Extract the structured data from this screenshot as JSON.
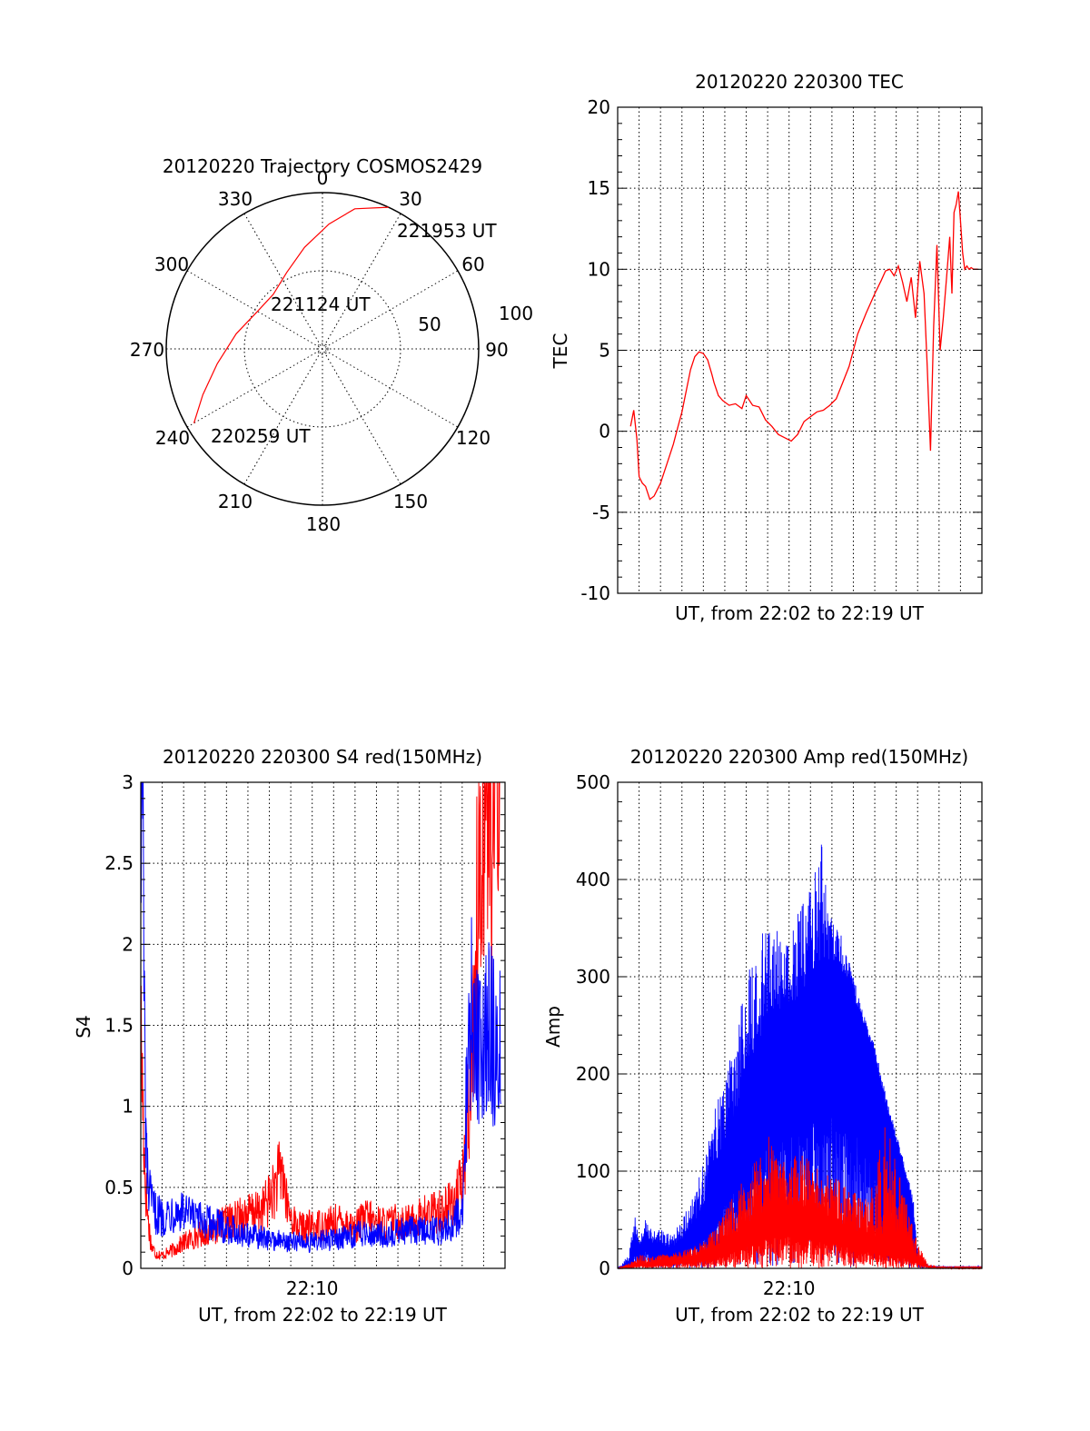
{
  "chart_data": [
    {
      "id": "polar",
      "type": "line",
      "title": "20120220 Trajectory COSMOS2429",
      "projection": "polar",
      "azimuth_labels": [
        "0",
        "30",
        "60",
        "90",
        "120",
        "150",
        "180",
        "210",
        "240",
        "270",
        "300",
        "330"
      ],
      "radius_labels": [
        "50",
        "100"
      ],
      "radius_range": [
        0,
        100
      ],
      "grid": true,
      "annotations": [
        "221953 UT",
        "221124 UT",
        "220259 UT"
      ],
      "series": [
        {
          "color": "#ff0000",
          "points": [
            {
              "az": 240,
              "r": 95
            },
            {
              "az": 249,
              "r": 82
            },
            {
              "az": 262,
              "r": 68
            },
            {
              "az": 280,
              "r": 56
            },
            {
              "az": 300,
              "r": 48
            },
            {
              "az": 318,
              "r": 47
            },
            {
              "az": 335,
              "r": 54
            },
            {
              "az": 350,
              "r": 66
            },
            {
              "az": 3,
              "r": 80
            },
            {
              "az": 13,
              "r": 92
            },
            {
              "az": 25,
              "r": 100
            }
          ]
        }
      ]
    },
    {
      "id": "tec",
      "type": "line",
      "title": "20120220 220300 TEC",
      "xlabel": "UT, from 22:02 to 22:19 UT",
      "ylabel": "TEC",
      "ylim": [
        -10,
        20
      ],
      "yticks": [
        "-10",
        "-5",
        "0",
        "5",
        "10",
        "15",
        "20"
      ],
      "xlim": [
        0,
        17
      ],
      "grid": true,
      "series": [
        {
          "color": "#ff0000",
          "x": [
            0.6,
            0.75,
            0.9,
            1.0,
            1.15,
            1.3,
            1.5,
            1.7,
            2.0,
            2.3,
            2.6,
            2.8,
            3.0,
            3.2,
            3.4,
            3.6,
            3.8,
            4.0,
            4.2,
            4.4,
            4.5,
            4.7,
            4.9,
            5.2,
            5.5,
            5.8,
            6.0,
            6.3,
            6.6,
            6.9,
            7.2,
            7.5,
            7.8,
            8.1,
            8.4,
            8.7,
            9.0,
            9.3,
            9.6,
            9.9,
            10.2,
            10.5,
            10.8,
            11.2,
            11.6,
            12.0,
            12.3,
            12.5,
            12.7,
            12.9,
            13.1,
            13.3,
            13.5,
            13.7,
            13.9,
            14.1,
            14.3,
            14.45,
            14.6,
            14.75,
            14.9,
            15.05,
            15.2,
            15.35,
            15.5,
            15.6,
            15.7,
            15.8,
            15.9,
            16.0,
            16.1,
            16.2,
            16.3,
            16.4,
            16.5,
            16.6,
            16.7,
            16.8
          ],
          "y": [
            0.3,
            1.3,
            -0.5,
            -2.8,
            -3.2,
            -3.4,
            -4.2,
            -4.0,
            -3.2,
            -2.0,
            -0.8,
            0.2,
            1.2,
            2.5,
            3.8,
            4.6,
            4.9,
            4.8,
            4.4,
            3.5,
            3.0,
            2.2,
            1.9,
            1.6,
            1.7,
            1.4,
            2.2,
            1.6,
            1.5,
            0.7,
            0.3,
            -0.2,
            -0.4,
            -0.6,
            -0.2,
            0.6,
            0.9,
            1.2,
            1.3,
            1.6,
            2.0,
            3.0,
            4.0,
            6.0,
            7.3,
            8.5,
            9.3,
            9.9,
            10.0,
            9.6,
            10.2,
            9.2,
            8.0,
            9.5,
            7.0,
            10.5,
            8.5,
            4.0,
            -1.2,
            6.5,
            11.5,
            5.0,
            7.0,
            9.5,
            12.0,
            8.5,
            13.5,
            14.0,
            14.8,
            13.0,
            11.0,
            10.0,
            10.2,
            10.0,
            10.1,
            10.0,
            10.0,
            10.0
          ]
        }
      ]
    },
    {
      "id": "s4",
      "type": "line",
      "title": "20120220 220300 S4 red(150MHz)",
      "xlabel": "UT, from 22:02 to 22:19 UT",
      "ylabel": "S4",
      "ylim": [
        0,
        3
      ],
      "yticks": [
        "0",
        "0.5",
        "1",
        "1.5",
        "2",
        "2.5",
        "3"
      ],
      "xlim": [
        0,
        17
      ],
      "xticks": [
        {
          "value": 8,
          "label": "22:10"
        }
      ],
      "grid": true,
      "series": [
        {
          "color": "#ff0000",
          "x": [
            0.0,
            0.1,
            0.2,
            0.35,
            0.5,
            0.7,
            1.0,
            1.5,
            2.0,
            2.5,
            3.0,
            3.5,
            4.0,
            4.5,
            5.0,
            5.5,
            6.0,
            6.3,
            6.6,
            6.8,
            7.0,
            7.3,
            7.6,
            8.0,
            8.5,
            9.0,
            9.5,
            10.0,
            10.5,
            11.0,
            11.5,
            12.0,
            12.5,
            13.0,
            13.5,
            14.0,
            14.5,
            15.0,
            15.2,
            15.4,
            15.6,
            15.8,
            16.0,
            16.2,
            16.4,
            16.6,
            16.8
          ],
          "y": [
            1.3,
            0.9,
            0.5,
            0.25,
            0.12,
            0.08,
            0.07,
            0.1,
            0.14,
            0.17,
            0.2,
            0.22,
            0.25,
            0.27,
            0.3,
            0.3,
            0.38,
            0.45,
            0.55,
            0.35,
            0.28,
            0.23,
            0.22,
            0.23,
            0.24,
            0.25,
            0.26,
            0.22,
            0.28,
            0.25,
            0.24,
            0.26,
            0.25,
            0.28,
            0.3,
            0.32,
            0.35,
            0.45,
            0.7,
            1.1,
            1.6,
            2.2,
            2.6,
            2.8,
            2.2,
            2.9,
            3.0
          ]
        },
        {
          "color": "#0000ff",
          "x": [
            0.0,
            0.08,
            0.15,
            0.22,
            0.3,
            0.4,
            0.5,
            0.7,
            1.0,
            1.5,
            2.0,
            2.5,
            3.0,
            3.5,
            4.0,
            4.5,
            5.0,
            5.5,
            6.0,
            6.5,
            7.0,
            7.5,
            8.0,
            8.5,
            9.0,
            9.5,
            10.0,
            10.5,
            11.0,
            11.5,
            12.0,
            12.5,
            13.0,
            13.5,
            14.0,
            14.5,
            15.0,
            15.2,
            15.4,
            15.6,
            15.8,
            16.0,
            16.2,
            16.4,
            16.6,
            16.8
          ],
          "y": [
            3.0,
            3.0,
            1.5,
            0.8,
            0.5,
            0.4,
            0.35,
            0.3,
            0.28,
            0.32,
            0.3,
            0.27,
            0.25,
            0.24,
            0.22,
            0.2,
            0.18,
            0.17,
            0.16,
            0.15,
            0.14,
            0.15,
            0.14,
            0.15,
            0.16,
            0.17,
            0.18,
            0.2,
            0.19,
            0.18,
            0.2,
            0.21,
            0.2,
            0.22,
            0.2,
            0.25,
            0.3,
            0.9,
            1.4,
            1.3,
            1.2,
            1.25,
            1.35,
            1.3,
            1.1,
            1.2
          ]
        }
      ]
    },
    {
      "id": "amp",
      "type": "line",
      "title": "20120220 220300 Amp red(150MHz)",
      "xlabel": "UT, from 22:02 to 22:19 UT",
      "ylabel": "Amp",
      "ylim": [
        0,
        500
      ],
      "yticks": [
        "0",
        "100",
        "200",
        "300",
        "400",
        "500"
      ],
      "xlim": [
        0,
        17
      ],
      "xticks": [
        {
          "value": 8,
          "label": "22:10"
        }
      ],
      "grid": true,
      "series": [
        {
          "color": "#0000ff",
          "x": [
            0.0,
            0.5,
            0.8,
            1.0,
            1.3,
            1.6,
            2.0,
            2.5,
            3.0,
            3.5,
            4.0,
            4.5,
            5.0,
            5.5,
            6.0,
            6.5,
            7.0,
            7.5,
            8.0,
            8.5,
            9.0,
            9.5,
            10.0,
            10.5,
            11.0,
            11.5,
            12.0,
            12.5,
            13.0,
            13.5,
            13.8,
            14.0,
            14.5,
            15.0,
            15.5,
            16.0,
            16.5,
            17.0
          ],
          "y": [
            0,
            5,
            30,
            15,
            40,
            20,
            25,
            20,
            30,
            45,
            60,
            90,
            130,
            160,
            200,
            230,
            250,
            260,
            270,
            280,
            300,
            310,
            320,
            300,
            280,
            250,
            220,
            170,
            130,
            90,
            60,
            10,
            3,
            2,
            2,
            2,
            2,
            2
          ],
          "y_peak": [
            0,
            15,
            55,
            30,
            50,
            40,
            40,
            35,
            50,
            75,
            110,
            160,
            200,
            240,
            300,
            340,
            350,
            360,
            330,
            380,
            400,
            440,
            360,
            340,
            300,
            260,
            230,
            180,
            140,
            100,
            70,
            15,
            3,
            2,
            2,
            2,
            2,
            2
          ]
        },
        {
          "color": "#ff0000",
          "x": [
            0.0,
            0.5,
            1.0,
            1.5,
            2.0,
            2.5,
            3.0,
            3.5,
            4.0,
            4.5,
            5.0,
            5.5,
            6.0,
            6.5,
            7.0,
            7.5,
            8.0,
            8.5,
            9.0,
            9.5,
            10.0,
            10.5,
            11.0,
            11.5,
            12.0,
            12.5,
            13.0,
            13.5,
            14.0,
            14.5,
            15.0,
            16.0,
            17.0
          ],
          "y": [
            0,
            2,
            5,
            5,
            8,
            10,
            10,
            12,
            15,
            20,
            25,
            35,
            45,
            55,
            60,
            65,
            65,
            65,
            60,
            55,
            50,
            45,
            40,
            35,
            30,
            28,
            25,
            20,
            10,
            2,
            1,
            1,
            1
          ],
          "y_peak": [
            0,
            5,
            15,
            12,
            15,
            15,
            18,
            22,
            28,
            40,
            60,
            80,
            100,
            120,
            140,
            110,
            115,
            120,
            110,
            100,
            95,
            90,
            80,
            70,
            90,
            160,
            110,
            70,
            25,
            5,
            2,
            1,
            1
          ]
        }
      ]
    }
  ]
}
